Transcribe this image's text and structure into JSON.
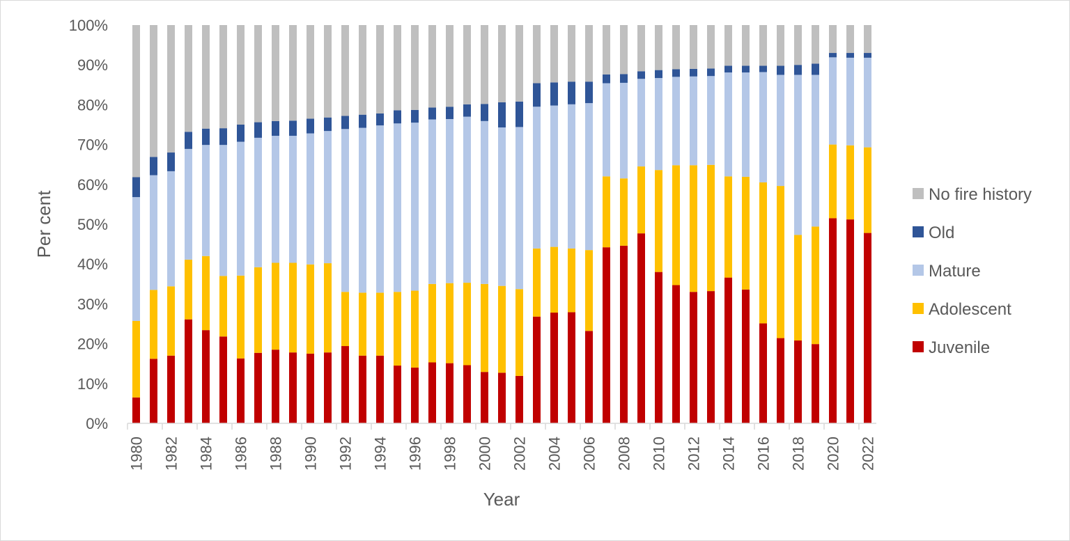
{
  "chart_data": {
    "type": "bar",
    "stacked": true,
    "title": "",
    "xlabel": "Year",
    "ylabel": "Per cent",
    "ylim": [
      0,
      100
    ],
    "yticks": [
      "0%",
      "10%",
      "20%",
      "30%",
      "40%",
      "50%",
      "60%",
      "70%",
      "80%",
      "90%",
      "100%"
    ],
    "grid": false,
    "legend_position": "right",
    "categories": [
      1980,
      1981,
      1982,
      1983,
      1984,
      1985,
      1986,
      1987,
      1988,
      1989,
      1990,
      1991,
      1992,
      1993,
      1994,
      1995,
      1996,
      1997,
      1998,
      1999,
      2000,
      2001,
      2002,
      2003,
      2004,
      2005,
      2006,
      2007,
      2008,
      2009,
      2010,
      2011,
      2012,
      2013,
      2014,
      2015,
      2016,
      2017,
      2018,
      2019,
      2020,
      2021,
      2022
    ],
    "xtick_labels": [
      "1980",
      "1982",
      "1984",
      "1986",
      "1988",
      "1990",
      "1992",
      "1994",
      "1996",
      "1998",
      "2000",
      "2002",
      "2004",
      "2006",
      "2008",
      "2010",
      "2012",
      "2014",
      "2016",
      "2018",
      "2020",
      "2022"
    ],
    "series": [
      {
        "name": "Juvenile",
        "color": "#c00000",
        "values": [
          6.5,
          16.2,
          17.0,
          26.1,
          23.4,
          21.8,
          16.3,
          17.7,
          18.5,
          17.8,
          17.5,
          17.8,
          19.4,
          17.0,
          17.0,
          14.5,
          14.0,
          15.3,
          15.1,
          14.6,
          12.9,
          12.7,
          11.9,
          26.8,
          27.8,
          27.9,
          23.2,
          44.2,
          44.6,
          47.7,
          38.0,
          34.7,
          33.0,
          33.2,
          36.6,
          33.6,
          25.1,
          21.4,
          20.8,
          19.9,
          51.5,
          51.2,
          47.8
        ]
      },
      {
        "name": "Adolescent",
        "color": "#ffc000",
        "values": [
          19.2,
          17.3,
          17.4,
          15.0,
          18.6,
          15.2,
          20.8,
          21.5,
          21.8,
          22.5,
          22.4,
          22.4,
          13.6,
          15.8,
          15.8,
          18.5,
          19.3,
          19.7,
          20.1,
          20.7,
          22.1,
          21.8,
          21.8,
          17.1,
          16.5,
          16.0,
          20.3,
          17.8,
          16.9,
          16.8,
          25.6,
          30.1,
          31.8,
          31.7,
          25.4,
          28.3,
          35.4,
          38.2,
          26.5,
          29.5,
          18.5,
          18.6,
          21.5
        ]
      },
      {
        "name": "Mature",
        "color": "#b4c7e7",
        "values": [
          31.1,
          28.8,
          28.9,
          27.8,
          27.9,
          32.9,
          33.6,
          32.5,
          31.9,
          31.9,
          32.9,
          33.2,
          40.9,
          41.4,
          42.0,
          42.3,
          42.2,
          41.3,
          41.2,
          41.7,
          40.9,
          39.8,
          40.7,
          35.6,
          35.5,
          36.2,
          36.9,
          23.4,
          24.0,
          22.0,
          23.1,
          22.2,
          22.3,
          22.3,
          26.1,
          26.2,
          27.7,
          27.9,
          40.2,
          38.1,
          21.9,
          22.0,
          22.5
        ]
      },
      {
        "name": "Old",
        "color": "#2f5597",
        "values": [
          5.0,
          4.6,
          4.7,
          4.3,
          4.1,
          4.2,
          4.3,
          3.9,
          3.7,
          3.8,
          3.7,
          3.4,
          3.3,
          3.3,
          3.0,
          3.3,
          3.2,
          3.0,
          3.1,
          3.1,
          4.3,
          6.3,
          6.4,
          5.9,
          5.8,
          5.7,
          5.4,
          2.2,
          2.2,
          1.9,
          2.0,
          1.9,
          1.9,
          1.9,
          1.7,
          1.7,
          1.6,
          2.3,
          2.5,
          2.8,
          1.1,
          1.2,
          1.2
        ]
      },
      {
        "name": "No fire history",
        "color": "#bfbfbf",
        "values": [
          38.2,
          33.1,
          32.0,
          26.8,
          26.0,
          25.9,
          25.0,
          24.4,
          24.1,
          24.0,
          23.5,
          23.2,
          22.8,
          22.5,
          22.2,
          21.4,
          21.3,
          20.7,
          20.5,
          19.9,
          19.8,
          19.4,
          19.2,
          14.6,
          14.4,
          14.2,
          14.2,
          12.4,
          12.3,
          11.6,
          11.3,
          11.1,
          11.0,
          10.9,
          10.2,
          10.2,
          10.2,
          10.2,
          10.0,
          9.7,
          7.0,
          7.0,
          7.0
        ]
      }
    ],
    "legend_order": [
      "No fire history",
      "Old",
      "Mature",
      "Adolescent",
      "Juvenile"
    ]
  }
}
